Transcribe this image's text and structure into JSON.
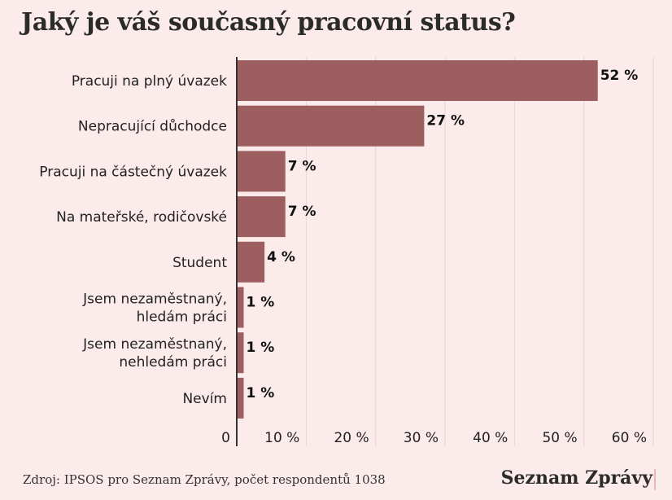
{
  "title": "Jaký je váš současný pracovní status?",
  "footer": {
    "source": "Zdroj: IPSOS pro Seznam Zprávy, počet respondentů 1038",
    "brand": "Seznam Zprávy"
  },
  "colors": {
    "background": "#fcebeb",
    "bar": "#9c5e5e",
    "axis": "#333333",
    "grid": "#e2d4d4"
  },
  "chart_data": {
    "type": "bar",
    "orientation": "horizontal",
    "categories": [
      "Pracuji na plný úvazek",
      "Nepracující důchodce",
      "Pracuji na částečný úvazek",
      "Na mateřské, rodičovské",
      "Student",
      "Jsem nezaměstnaný,\nhledám práci",
      "Jsem nezaměstnaný,\nnehledám práci",
      "Nevím"
    ],
    "values": [
      52,
      27,
      7,
      7,
      4,
      1,
      1,
      1
    ],
    "value_labels": [
      "52 %",
      "27 %",
      "7 %",
      "7 %",
      "4 %",
      "1 %",
      "1 %",
      "1 %"
    ],
    "xlim": [
      0,
      60
    ],
    "xticks": [
      0,
      10,
      20,
      30,
      40,
      50,
      60
    ],
    "xtick_labels": [
      "0",
      "10 %",
      "20 %",
      "30 %",
      "40 %",
      "50 %",
      "60 %"
    ],
    "grid": true,
    "legend": "none"
  }
}
